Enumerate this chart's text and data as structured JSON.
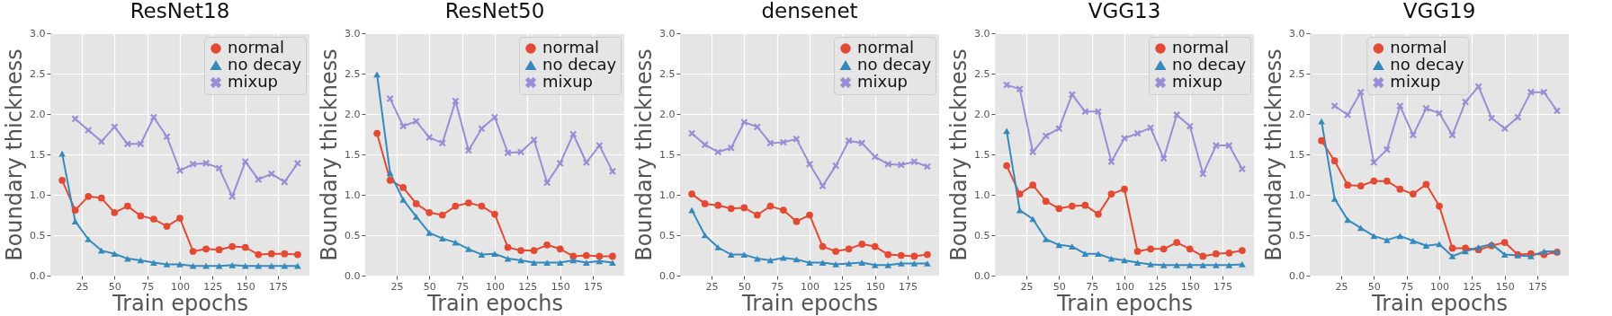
{
  "chart_data": [
    {
      "type": "line",
      "title": "ResNet18",
      "xlabel": "Train epochs",
      "ylabel": "Boundary thickness",
      "x": [
        10,
        20,
        30,
        40,
        50,
        60,
        70,
        80,
        90,
        100,
        110,
        120,
        130,
        140,
        150,
        160,
        170,
        180,
        190
      ],
      "xlim": [
        1,
        199
      ],
      "xticks": [
        25,
        50,
        75,
        100,
        125,
        150,
        175
      ],
      "ylim": [
        0,
        3
      ],
      "yticks": [
        {
          "value": 0,
          "label": "0.0"
        },
        0.5,
        {
          "value": 1,
          "label": "1.0"
        },
        1.5,
        {
          "value": 2,
          "label": "2.0"
        },
        2.5,
        {
          "value": 3,
          "label": "3.0"
        }
      ],
      "grid": true,
      "legend": "top right",
      "series": [
        {
          "name": "normal",
          "color": "#e24a33",
          "marker": "circle",
          "values": [
            1.18,
            0.81,
            0.98,
            0.96,
            0.78,
            0.86,
            0.74,
            0.7,
            0.61,
            0.71,
            0.3,
            0.33,
            0.32,
            0.36,
            0.35,
            0.26,
            0.27,
            0.27,
            0.26
          ]
        },
        {
          "name": "no decay",
          "color": "#348abd",
          "marker": "triangle",
          "values": [
            1.51,
            0.67,
            0.45,
            0.31,
            0.27,
            0.21,
            0.19,
            0.16,
            0.14,
            0.14,
            0.12,
            0.12,
            0.12,
            0.13,
            0.12,
            0.12,
            0.12,
            0.12,
            0.12
          ]
        },
        {
          "name": "mixup",
          "color": "#988ed5",
          "marker": "cross",
          "values": [
            null,
            1.94,
            1.8,
            1.66,
            1.84,
            1.63,
            1.63,
            1.96,
            1.72,
            1.3,
            1.38,
            1.39,
            1.33,
            0.98,
            1.41,
            1.19,
            1.26,
            1.16,
            1.39
          ]
        }
      ]
    },
    {
      "type": "line",
      "title": "ResNet50",
      "xlabel": "Train epochs",
      "ylabel": "Boundary thickness",
      "x": [
        10,
        20,
        30,
        40,
        50,
        60,
        70,
        80,
        90,
        100,
        110,
        120,
        130,
        140,
        150,
        160,
        170,
        180,
        190
      ],
      "xlim": [
        1,
        199
      ],
      "xticks": [
        25,
        50,
        75,
        100,
        125,
        150,
        175
      ],
      "ylim": [
        0,
        3
      ],
      "yticks": [
        {
          "value": 0,
          "label": "0.0"
        },
        0.5,
        {
          "value": 1,
          "label": "1.0"
        },
        1.5,
        {
          "value": 2,
          "label": "2.0"
        },
        2.5,
        {
          "value": 3,
          "label": "3.0"
        }
      ],
      "grid": true,
      "legend": "top right",
      "series": [
        {
          "name": "normal",
          "color": "#e24a33",
          "marker": "circle",
          "values": [
            1.76,
            1.18,
            1.09,
            0.89,
            0.78,
            0.75,
            0.86,
            0.9,
            0.86,
            0.76,
            0.35,
            0.31,
            0.31,
            0.38,
            0.33,
            0.24,
            0.25,
            0.24,
            0.24
          ]
        },
        {
          "name": "no decay",
          "color": "#348abd",
          "marker": "triangle",
          "values": [
            2.49,
            1.27,
            0.94,
            0.73,
            0.53,
            0.46,
            0.41,
            0.33,
            0.26,
            0.27,
            0.21,
            0.19,
            0.16,
            0.16,
            0.16,
            0.19,
            0.16,
            0.18,
            0.16
          ]
        },
        {
          "name": "mixup",
          "color": "#988ed5",
          "marker": "cross",
          "values": [
            null,
            2.19,
            1.85,
            1.91,
            1.71,
            1.64,
            2.16,
            1.55,
            1.82,
            1.96,
            1.52,
            1.53,
            1.68,
            1.15,
            1.39,
            1.75,
            1.4,
            1.61,
            1.29
          ]
        }
      ]
    },
    {
      "type": "line",
      "title": "densenet",
      "xlabel": "Train epochs",
      "ylabel": "Boundary thickness",
      "x": [
        10,
        20,
        30,
        40,
        50,
        60,
        70,
        80,
        90,
        100,
        110,
        120,
        130,
        140,
        150,
        160,
        170,
        180,
        190
      ],
      "xlim": [
        1,
        199
      ],
      "xticks": [
        25,
        50,
        75,
        100,
        125,
        150,
        175
      ],
      "ylim": [
        0,
        3
      ],
      "yticks": [
        {
          "value": 0,
          "label": "0.0"
        },
        0.5,
        {
          "value": 1,
          "label": "1.0"
        },
        1.5,
        {
          "value": 2,
          "label": "2.0"
        },
        2.5,
        {
          "value": 3,
          "label": "3.0"
        }
      ],
      "grid": true,
      "legend": "top right",
      "series": [
        {
          "name": "normal",
          "color": "#e24a33",
          "marker": "circle",
          "values": [
            1.01,
            0.89,
            0.87,
            0.83,
            0.84,
            0.75,
            0.86,
            0.81,
            0.67,
            0.75,
            0.36,
            0.3,
            0.33,
            0.39,
            0.36,
            0.26,
            0.25,
            0.24,
            0.26
          ]
        },
        {
          "name": "no decay",
          "color": "#348abd",
          "marker": "triangle",
          "values": [
            0.81,
            0.5,
            0.35,
            0.26,
            0.26,
            0.21,
            0.19,
            0.22,
            0.2,
            0.16,
            0.16,
            0.14,
            0.15,
            0.16,
            0.13,
            0.13,
            0.15,
            0.15,
            0.15
          ]
        },
        {
          "name": "mixup",
          "color": "#988ed5",
          "marker": "cross",
          "values": [
            1.76,
            1.62,
            1.53,
            1.58,
            1.9,
            1.84,
            1.64,
            1.65,
            1.69,
            1.38,
            1.11,
            1.36,
            1.67,
            1.64,
            1.47,
            1.38,
            1.37,
            1.41,
            1.35
          ]
        }
      ]
    },
    {
      "type": "line",
      "title": "VGG13",
      "xlabel": "Train epochs",
      "ylabel": "Boundary thickness",
      "x": [
        10,
        20,
        30,
        40,
        50,
        60,
        70,
        80,
        90,
        100,
        110,
        120,
        130,
        140,
        150,
        160,
        170,
        180,
        190
      ],
      "xlim": [
        1,
        199
      ],
      "xticks": [
        25,
        50,
        75,
        100,
        125,
        150,
        175
      ],
      "ylim": [
        0,
        3
      ],
      "yticks": [
        {
          "value": 0,
          "label": "0.0"
        },
        0.5,
        {
          "value": 1,
          "label": "1.0"
        },
        1.5,
        {
          "value": 2,
          "label": "2.0"
        },
        2.5,
        {
          "value": 3,
          "label": "3.0"
        }
      ],
      "grid": true,
      "legend": "top right",
      "series": [
        {
          "name": "normal",
          "color": "#e24a33",
          "marker": "circle",
          "values": [
            1.36,
            1.01,
            1.12,
            0.92,
            0.83,
            0.86,
            0.87,
            0.76,
            1.01,
            1.07,
            0.3,
            0.33,
            0.33,
            0.41,
            0.33,
            0.24,
            0.27,
            0.28,
            0.31
          ]
        },
        {
          "name": "no decay",
          "color": "#348abd",
          "marker": "triangle",
          "values": [
            1.79,
            0.81,
            0.7,
            0.45,
            0.38,
            0.36,
            0.27,
            0.27,
            0.21,
            0.19,
            0.16,
            0.14,
            0.13,
            0.13,
            0.13,
            0.13,
            0.13,
            0.13,
            0.14
          ]
        },
        {
          "name": "mixup",
          "color": "#988ed5",
          "marker": "cross",
          "values": [
            2.36,
            2.31,
            1.53,
            1.73,
            1.82,
            2.24,
            2.03,
            2.03,
            1.41,
            1.7,
            1.76,
            1.83,
            1.45,
            1.99,
            1.85,
            1.26,
            1.61,
            1.61,
            1.32
          ]
        }
      ]
    },
    {
      "type": "line",
      "title": "VGG19",
      "xlabel": "Train epochs",
      "ylabel": "Boundary thickness",
      "x": [
        10,
        20,
        30,
        40,
        50,
        60,
        70,
        80,
        90,
        100,
        110,
        120,
        130,
        140,
        150,
        160,
        170,
        180,
        190
      ],
      "xlim": [
        1,
        199
      ],
      "xticks": [
        25,
        50,
        75,
        100,
        125,
        150,
        175
      ],
      "ylim": [
        0,
        3
      ],
      "yticks": [
        {
          "value": 0,
          "label": "0.0"
        },
        0.5,
        {
          "value": 1,
          "label": "1.0"
        },
        1.5,
        {
          "value": 2,
          "label": "2.0"
        },
        2.5,
        {
          "value": 3,
          "label": "3.0"
        }
      ],
      "grid": true,
      "legend": "top",
      "series": [
        {
          "name": "normal",
          "color": "#e24a33",
          "marker": "circle",
          "values": [
            1.67,
            1.42,
            1.12,
            1.11,
            1.17,
            1.17,
            1.07,
            1.01,
            1.13,
            0.86,
            0.34,
            0.34,
            0.32,
            0.37,
            0.41,
            0.26,
            0.27,
            0.26,
            0.29
          ]
        },
        {
          "name": "no decay",
          "color": "#348abd",
          "marker": "triangle",
          "values": [
            1.91,
            0.95,
            0.69,
            0.59,
            0.49,
            0.44,
            0.49,
            0.43,
            0.37,
            0.39,
            0.24,
            0.3,
            0.35,
            0.39,
            0.26,
            0.25,
            0.24,
            0.3,
            0.3
          ]
        },
        {
          "name": "mixup",
          "color": "#988ed5",
          "marker": "cross",
          "values": [
            null,
            2.1,
            1.99,
            2.27,
            1.4,
            1.56,
            2.1,
            1.74,
            2.07,
            2.01,
            1.74,
            2.15,
            2.34,
            1.95,
            1.82,
            1.96,
            2.27,
            2.27,
            2.04
          ]
        }
      ]
    }
  ]
}
